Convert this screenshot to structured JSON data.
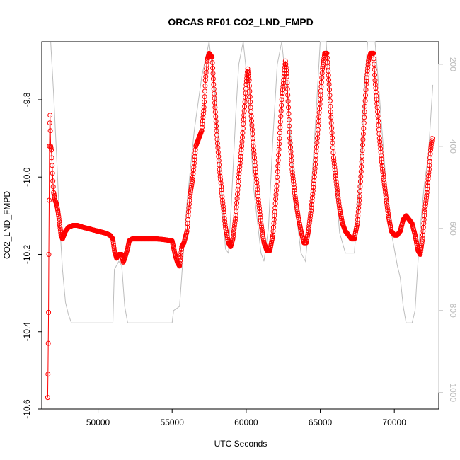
{
  "chart_data": {
    "type": "scatter",
    "title": "ORCAS RF01 CO2_LND_FMPD",
    "xlabel": "UTC Seconds",
    "ylabel": "CO2_LND_FMPD",
    "xlim": [
      46200,
      73000
    ],
    "ylim": [
      -10.6,
      -9.65
    ],
    "x_ticks": [
      50000,
      55000,
      60000,
      65000,
      70000
    ],
    "x_tick_labels": [
      "50000",
      "55000",
      "60000",
      "65000",
      "70000"
    ],
    "y_ticks": [
      -10.6,
      -10.4,
      -10.2,
      -10.0,
      -9.8
    ],
    "y_tick_labels": [
      "-10.6",
      "-10.4",
      "-10.2",
      "-10.0",
      "-9.8"
    ],
    "y2_lim": [
      1040,
      145
    ],
    "y2_ticks": [
      200,
      400,
      600,
      800,
      1000
    ],
    "y2_tick_labels": [
      "200",
      "400",
      "600",
      "800",
      "1000"
    ],
    "colors": {
      "series": "#ff0000",
      "secondary": "#bdbdbd",
      "axis": "#000000"
    },
    "series": [
      {
        "marker": "open-circle",
        "y_axis": "left",
        "points": [
          [
            46600,
            -10.57
          ],
          [
            46620,
            -10.51
          ],
          [
            46640,
            -10.43
          ],
          [
            46660,
            -10.35
          ],
          [
            46680,
            -10.2
          ],
          [
            46700,
            -10.06
          ],
          [
            46720,
            -9.92
          ],
          [
            46740,
            -9.86
          ],
          [
            46760,
            -9.84
          ],
          [
            46780,
            -9.88
          ],
          [
            46800,
            -9.92
          ],
          [
            46850,
            -9.93
          ],
          [
            46900,
            -9.97
          ],
          [
            46950,
            -10.01
          ],
          [
            47000,
            -10.04
          ],
          [
            47100,
            -10.06
          ],
          [
            47200,
            -10.07
          ],
          [
            47300,
            -10.09
          ],
          [
            47400,
            -10.12
          ],
          [
            47500,
            -10.15
          ],
          [
            47600,
            -10.16
          ],
          [
            47700,
            -10.15
          ],
          [
            47800,
            -10.14
          ],
          [
            48000,
            -10.13
          ],
          [
            48300,
            -10.125
          ],
          [
            48600,
            -10.125
          ],
          [
            49000,
            -10.13
          ],
          [
            49500,
            -10.135
          ],
          [
            50000,
            -10.14
          ],
          [
            50500,
            -10.145
          ],
          [
            50800,
            -10.15
          ],
          [
            51000,
            -10.16
          ],
          [
            51100,
            -10.19
          ],
          [
            51250,
            -10.21
          ],
          [
            51400,
            -10.2
          ],
          [
            51600,
            -10.2
          ],
          [
            51700,
            -10.22
          ],
          [
            51800,
            -10.21
          ],
          [
            52000,
            -10.185
          ],
          [
            52100,
            -10.165
          ],
          [
            52300,
            -10.16
          ],
          [
            53000,
            -10.16
          ],
          [
            53500,
            -10.16
          ],
          [
            54000,
            -10.16
          ],
          [
            54500,
            -10.162
          ],
          [
            55000,
            -10.165
          ],
          [
            55200,
            -10.2
          ],
          [
            55350,
            -10.22
          ],
          [
            55500,
            -10.23
          ],
          [
            55650,
            -10.18
          ],
          [
            55800,
            -10.17
          ],
          [
            56000,
            -10.14
          ],
          [
            56200,
            -10.05
          ],
          [
            56400,
            -10.0
          ],
          [
            56600,
            -9.92
          ],
          [
            56800,
            -9.9
          ],
          [
            57000,
            -9.88
          ],
          [
            57150,
            -9.82
          ],
          [
            57250,
            -9.75
          ],
          [
            57350,
            -9.7
          ],
          [
            57500,
            -9.68
          ],
          [
            57700,
            -9.69
          ],
          [
            57800,
            -9.76
          ],
          [
            57900,
            -9.82
          ],
          [
            58000,
            -9.88
          ],
          [
            58200,
            -9.98
          ],
          [
            58400,
            -10.06
          ],
          [
            58600,
            -10.13
          ],
          [
            58800,
            -10.17
          ],
          [
            58950,
            -10.18
          ],
          [
            59100,
            -10.16
          ],
          [
            59300,
            -10.1
          ],
          [
            59500,
            -10.0
          ],
          [
            59700,
            -9.92
          ],
          [
            59850,
            -9.84
          ],
          [
            60000,
            -9.76
          ],
          [
            60100,
            -9.72
          ],
          [
            60200,
            -9.75
          ],
          [
            60300,
            -9.82
          ],
          [
            60450,
            -9.9
          ],
          [
            60600,
            -9.97
          ],
          [
            60800,
            -10.05
          ],
          [
            61000,
            -10.12
          ],
          [
            61200,
            -10.17
          ],
          [
            61400,
            -10.19
          ],
          [
            61600,
            -10.19
          ],
          [
            61800,
            -10.15
          ],
          [
            61950,
            -10.08
          ],
          [
            62100,
            -10.0
          ],
          [
            62250,
            -9.9
          ],
          [
            62400,
            -9.8
          ],
          [
            62550,
            -9.74
          ],
          [
            62650,
            -9.7
          ],
          [
            62750,
            -9.74
          ],
          [
            62850,
            -9.82
          ],
          [
            62950,
            -9.9
          ],
          [
            63100,
            -9.98
          ],
          [
            63300,
            -10.05
          ],
          [
            63500,
            -10.1
          ],
          [
            63700,
            -10.14
          ],
          [
            63900,
            -10.17
          ],
          [
            64050,
            -10.17
          ],
          [
            64200,
            -10.14
          ],
          [
            64400,
            -10.08
          ],
          [
            64600,
            -10.0
          ],
          [
            64800,
            -9.9
          ],
          [
            65000,
            -9.8
          ],
          [
            65150,
            -9.72
          ],
          [
            65300,
            -9.68
          ],
          [
            65450,
            -9.68
          ],
          [
            65600,
            -9.76
          ],
          [
            65750,
            -9.86
          ],
          [
            65900,
            -9.95
          ],
          [
            66100,
            -10.02
          ],
          [
            66300,
            -10.08
          ],
          [
            66500,
            -10.12
          ],
          [
            66700,
            -10.14
          ],
          [
            66900,
            -10.15
          ],
          [
            67100,
            -10.16
          ],
          [
            67300,
            -10.16
          ],
          [
            67500,
            -10.12
          ],
          [
            67650,
            -10.05
          ],
          [
            67800,
            -9.96
          ],
          [
            67950,
            -9.86
          ],
          [
            68100,
            -9.76
          ],
          [
            68250,
            -9.7
          ],
          [
            68400,
            -9.68
          ],
          [
            68600,
            -9.68
          ],
          [
            68700,
            -9.75
          ],
          [
            68850,
            -9.82
          ],
          [
            69000,
            -9.9
          ],
          [
            69200,
            -9.98
          ],
          [
            69400,
            -10.04
          ],
          [
            69600,
            -10.1
          ],
          [
            69800,
            -10.14
          ],
          [
            70000,
            -10.15
          ],
          [
            70200,
            -10.15
          ],
          [
            70400,
            -10.14
          ],
          [
            70600,
            -10.11
          ],
          [
            70800,
            -10.1
          ],
          [
            71000,
            -10.11
          ],
          [
            71200,
            -10.12
          ],
          [
            71400,
            -10.15
          ],
          [
            71600,
            -10.19
          ],
          [
            71750,
            -10.2
          ],
          [
            71900,
            -10.16
          ],
          [
            72050,
            -10.09
          ],
          [
            72200,
            -10.04
          ],
          [
            72350,
            -9.98
          ],
          [
            72450,
            -9.93
          ],
          [
            72550,
            -9.9
          ]
        ]
      },
      {
        "marker": "line",
        "y_axis": "right",
        "points": [
          [
            46800,
            145
          ],
          [
            47000,
            270
          ],
          [
            47200,
            420
          ],
          [
            47400,
            580
          ],
          [
            47600,
            700
          ],
          [
            47800,
            780
          ],
          [
            48000,
            810
          ],
          [
            48200,
            830
          ],
          [
            49000,
            830
          ],
          [
            50000,
            830
          ],
          [
            51000,
            830
          ],
          [
            51100,
            700
          ],
          [
            51400,
            680
          ],
          [
            51600,
            690
          ],
          [
            51800,
            790
          ],
          [
            52000,
            830
          ],
          [
            53000,
            830
          ],
          [
            54000,
            830
          ],
          [
            55000,
            830
          ],
          [
            55100,
            800
          ],
          [
            55500,
            790
          ],
          [
            56000,
            540
          ],
          [
            56500,
            360
          ],
          [
            57000,
            230
          ],
          [
            57500,
            145
          ],
          [
            58000,
            300
          ],
          [
            58300,
            500
          ],
          [
            58600,
            650
          ],
          [
            58800,
            660
          ],
          [
            59000,
            540
          ],
          [
            59300,
            320
          ],
          [
            59500,
            200
          ],
          [
            59800,
            145
          ],
          [
            60100,
            250
          ],
          [
            60500,
            500
          ],
          [
            61000,
            660
          ],
          [
            61200,
            680
          ],
          [
            61500,
            600
          ],
          [
            61800,
            380
          ],
          [
            62100,
            200
          ],
          [
            62400,
            145
          ],
          [
            62900,
            320
          ],
          [
            63300,
            540
          ],
          [
            63700,
            660
          ],
          [
            64000,
            680
          ],
          [
            64300,
            560
          ],
          [
            64700,
            330
          ],
          [
            65000,
            145
          ],
          [
            65400,
            145
          ],
          [
            65800,
            380
          ],
          [
            66300,
            610
          ],
          [
            66700,
            660
          ],
          [
            67300,
            660
          ],
          [
            67600,
            510
          ],
          [
            67900,
            310
          ],
          [
            68200,
            145
          ],
          [
            68700,
            145
          ],
          [
            69000,
            280
          ],
          [
            69400,
            470
          ],
          [
            69800,
            610
          ],
          [
            70200,
            690
          ],
          [
            70400,
            720
          ],
          [
            70600,
            790
          ],
          [
            70800,
            830
          ],
          [
            71200,
            830
          ],
          [
            71400,
            800
          ],
          [
            71700,
            620
          ],
          [
            72000,
            500
          ],
          [
            72300,
            420
          ],
          [
            72600,
            250
          ]
        ]
      }
    ]
  }
}
